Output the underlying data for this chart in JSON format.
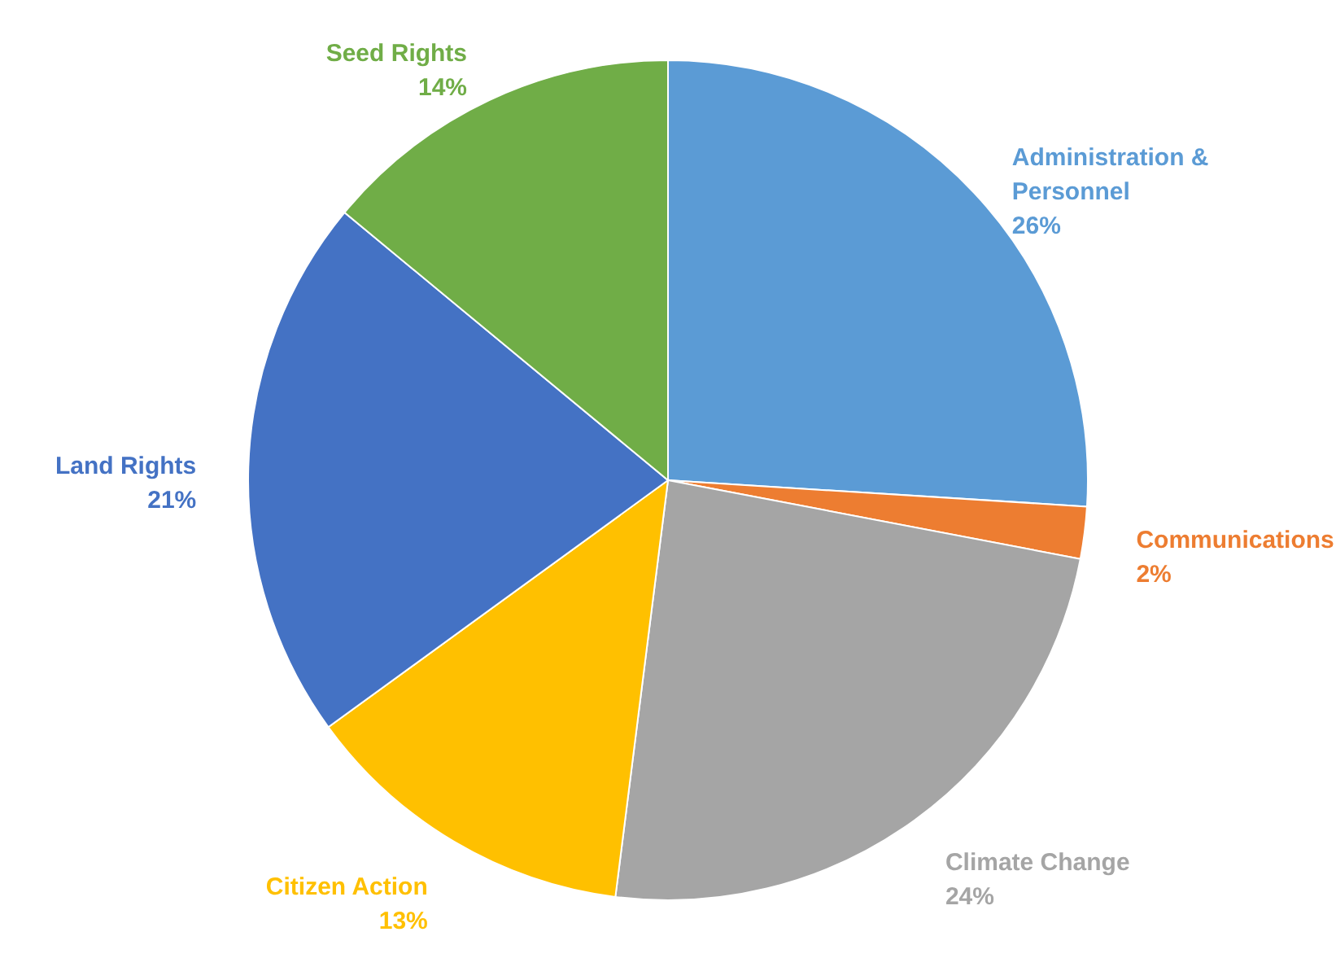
{
  "chart_data": {
    "type": "pie",
    "categories": [
      "Administration & Personnel",
      "Communications",
      "Climate Change",
      "Citizen Action",
      "Land Rights",
      "Seed Rights"
    ],
    "values": [
      26,
      2,
      24,
      13,
      21,
      14
    ],
    "colors": [
      "#5b9bd5",
      "#ed7d31",
      "#a5a5a5",
      "#ffc000",
      "#4472c4",
      "#70ad47"
    ],
    "value_labels": [
      "26%",
      "2%",
      "24%",
      "13%",
      "21%",
      "14%"
    ]
  }
}
